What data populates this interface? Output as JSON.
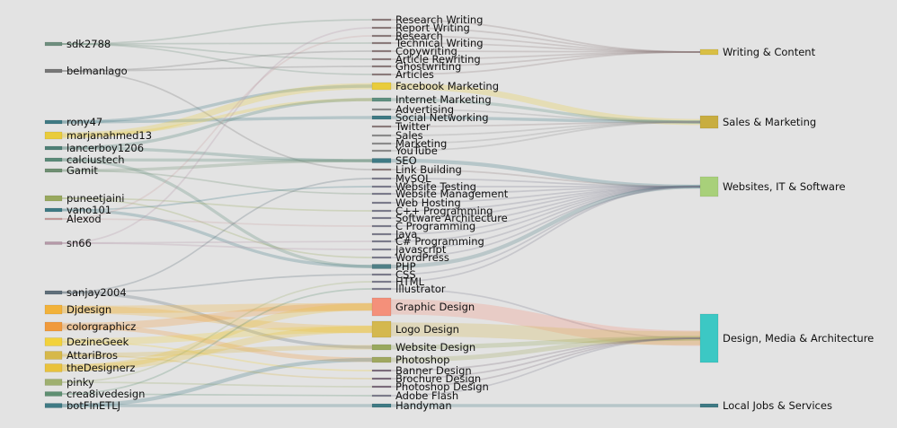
{
  "diagram": {
    "columns": [
      [
        {
          "label": "sdk2788",
          "color": "#6f8f7f"
        },
        {
          "label": "belmanlago",
          "color": "#777777"
        },
        {
          "label": "rony47",
          "color": "#3f7a84"
        },
        {
          "label": "marjanahmed13",
          "color": "#e9cc3c"
        },
        {
          "label": "lancerboy1206",
          "color": "#4f8076"
        },
        {
          "label": "calciustech",
          "color": "#5a8a78"
        },
        {
          "label": "Gamit",
          "color": "#6f8f72"
        },
        {
          "label": "puneetjaini",
          "color": "#98a85e"
        },
        {
          "label": "vano101",
          "color": "#3f7a84"
        },
        {
          "label": "Alexod",
          "color": "#c9a0a0"
        },
        {
          "label": "sn66",
          "color": "#b598a8"
        },
        {
          "label": "sanjay2004",
          "color": "#5f6f7a"
        },
        {
          "label": "Djdesign",
          "color": "#f2b23a"
        },
        {
          "label": "colorgraphicz",
          "color": "#f09a3c"
        },
        {
          "label": "DezineGeek",
          "color": "#f2d23c"
        },
        {
          "label": "AttariBros",
          "color": "#d6b84a"
        },
        {
          "label": "theDesignerz",
          "color": "#e9c23c"
        },
        {
          "label": "pinky",
          "color": "#9fb070"
        },
        {
          "label": "crea8ivedesign",
          "color": "#5f8f72"
        },
        {
          "label": "botFlnETLJ",
          "color": "#3f7a84"
        }
      ],
      [
        {
          "label": "Research Writing",
          "color": "#8f7f7f"
        },
        {
          "label": "Report Writing",
          "color": "#8f7f7f"
        },
        {
          "label": "Research",
          "color": "#8f7f7f"
        },
        {
          "label": "Technical Writing",
          "color": "#8f7f7f"
        },
        {
          "label": "Copywriting",
          "color": "#8f7f7f"
        },
        {
          "label": "Article Rewriting",
          "color": "#8f7f7f"
        },
        {
          "label": "Ghostwriting",
          "color": "#8f7f7f"
        },
        {
          "label": "Articles",
          "color": "#8f7f7f"
        },
        {
          "label": "Facebook Marketing",
          "color": "#e9cc3c"
        },
        {
          "label": "Internet Marketing",
          "color": "#5f8f80"
        },
        {
          "label": "Advertising",
          "color": "#8f8f8f"
        },
        {
          "label": "Social Networking",
          "color": "#3f7a84"
        },
        {
          "label": "Twitter",
          "color": "#8f7f7f"
        },
        {
          "label": "Sales",
          "color": "#8f8f8f"
        },
        {
          "label": "Marketing",
          "color": "#8f8f8f"
        },
        {
          "label": "YouTube",
          "color": "#8f8f8f"
        },
        {
          "label": "SEO",
          "color": "#3f7a84"
        },
        {
          "label": "Link Building",
          "color": "#8f7f7f"
        },
        {
          "label": "MySQL",
          "color": "#7f7f8f"
        },
        {
          "label": "Website Testing",
          "color": "#7f7f8f"
        },
        {
          "label": "Website Management",
          "color": "#7f7f8f"
        },
        {
          "label": "Web Hosting",
          "color": "#7f7f8f"
        },
        {
          "label": "C++ Programming",
          "color": "#7f7f8f"
        },
        {
          "label": "Software Architecture",
          "color": "#7f7f8f"
        },
        {
          "label": "C Programming",
          "color": "#7f7f8f"
        },
        {
          "label": "Java",
          "color": "#7f7f8f"
        },
        {
          "label": "C# Programming",
          "color": "#7f7f8f"
        },
        {
          "label": "Javascript",
          "color": "#7f7f8f"
        },
        {
          "label": "WordPress",
          "color": "#7f7f8f"
        },
        {
          "label": "PHP",
          "color": "#4f7f86"
        },
        {
          "label": "CSS",
          "color": "#7f7f8f"
        },
        {
          "label": "HTML",
          "color": "#7f7f8f"
        },
        {
          "label": "Illustrator",
          "color": "#7f7f8f"
        },
        {
          "label": "Graphic Design",
          "color": "#f4907a"
        },
        {
          "label": "Logo Design",
          "color": "#d4b84e"
        },
        {
          "label": "Website Design",
          "color": "#98a85e"
        },
        {
          "label": "Photoshop",
          "color": "#a0a860"
        },
        {
          "label": "Banner Design",
          "color": "#7f6f7f"
        },
        {
          "label": "Brochure Design",
          "color": "#7f6f7f"
        },
        {
          "label": "Photoshop Design",
          "color": "#7f6f7f"
        },
        {
          "label": "Adobe Flash",
          "color": "#7f7f8f"
        },
        {
          "label": "Handyman",
          "color": "#3f7a84"
        }
      ],
      [
        {
          "label": "Writing & Content",
          "color": "#d9bf45"
        },
        {
          "label": "Sales & Marketing",
          "color": "#c8ad40"
        },
        {
          "label": "Websites, IT & Software",
          "color": "#a8d07a"
        },
        {
          "label": "Design, Media & Architecture",
          "color": "#3cc8c4"
        },
        {
          "label": "Local Jobs & Services",
          "color": "#3f7a84"
        }
      ]
    ]
  }
}
